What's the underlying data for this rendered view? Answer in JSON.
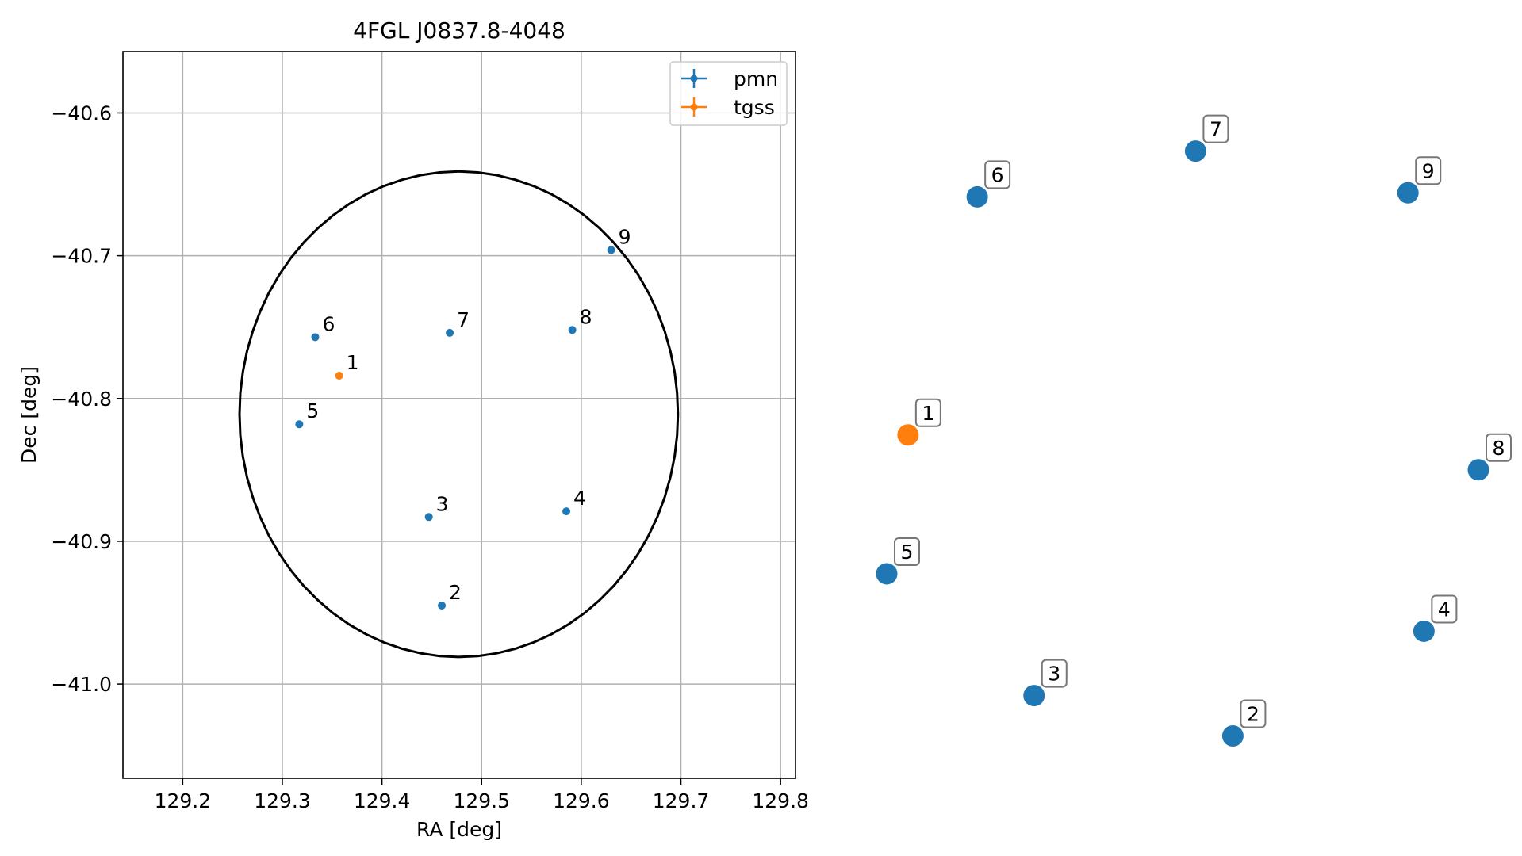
{
  "chart_data": [
    {
      "type": "scatter",
      "title": "4FGL J0837.8-4048",
      "xlabel": "RA [deg]",
      "ylabel": "Dec [deg]",
      "xlim": [
        129.14,
        129.815
      ],
      "ylim": [
        -41.066,
        -40.557
      ],
      "xticks": [
        129.2,
        129.3,
        129.4,
        129.5,
        129.6,
        129.7,
        129.8
      ],
      "yticks": [
        -40.6,
        -40.7,
        -40.8,
        -40.9,
        -41.0
      ],
      "xtick_labels": [
        "129.2",
        "129.3",
        "129.4",
        "129.5",
        "129.6",
        "129.7",
        "129.8"
      ],
      "ytick_labels": [
        "−40.6",
        "−40.7",
        "−40.8",
        "−40.9",
        "−41.0"
      ],
      "grid": true,
      "legend_position": "top-right",
      "series": [
        {
          "name": "pmn",
          "color": "#1f77b4",
          "points": [
            {
              "label": "2",
              "x": 129.46,
              "y": -40.945
            },
            {
              "label": "3",
              "x": 129.447,
              "y": -40.883
            },
            {
              "label": "4",
              "x": 129.585,
              "y": -40.879
            },
            {
              "label": "5",
              "x": 129.317,
              "y": -40.818
            },
            {
              "label": "6",
              "x": 129.333,
              "y": -40.757
            },
            {
              "label": "7",
              "x": 129.468,
              "y": -40.754
            },
            {
              "label": "8",
              "x": 129.591,
              "y": -40.752
            },
            {
              "label": "9",
              "x": 129.63,
              "y": -40.696
            }
          ]
        },
        {
          "name": "tgss",
          "color": "#ff7f0e",
          "points": [
            {
              "label": "1",
              "x": 129.357,
              "y": -40.784
            }
          ]
        }
      ],
      "ellipse": {
        "center": [
          129.477,
          -40.811
        ],
        "semi_axis_ra": 0.22,
        "semi_axis_dec": 0.17,
        "color": "#000000"
      }
    },
    {
      "type": "scatter",
      "title": "",
      "axes_visible": false,
      "xlim": [
        0,
        1
      ],
      "ylim": [
        0,
        1
      ],
      "series": [
        {
          "color": "#1f77b4",
          "points": [
            {
              "label": "2",
              "x": 0.585,
              "y": 0.04
            },
            {
              "label": "3",
              "x": 0.249,
              "y": 0.099
            },
            {
              "label": "4",
              "x": 0.908,
              "y": 0.193
            },
            {
              "label": "5",
              "x": 0.0,
              "y": 0.277
            },
            {
              "label": "6",
              "x": 0.153,
              "y": 0.828
            },
            {
              "label": "7",
              "x": 0.522,
              "y": 0.895
            },
            {
              "label": "8",
              "x": 1.0,
              "y": 0.429
            },
            {
              "label": "9",
              "x": 0.881,
              "y": 0.834
            }
          ]
        },
        {
          "color": "#ff7f0e",
          "points": [
            {
              "label": "1",
              "x": 0.036,
              "y": 0.48
            }
          ]
        }
      ]
    }
  ]
}
